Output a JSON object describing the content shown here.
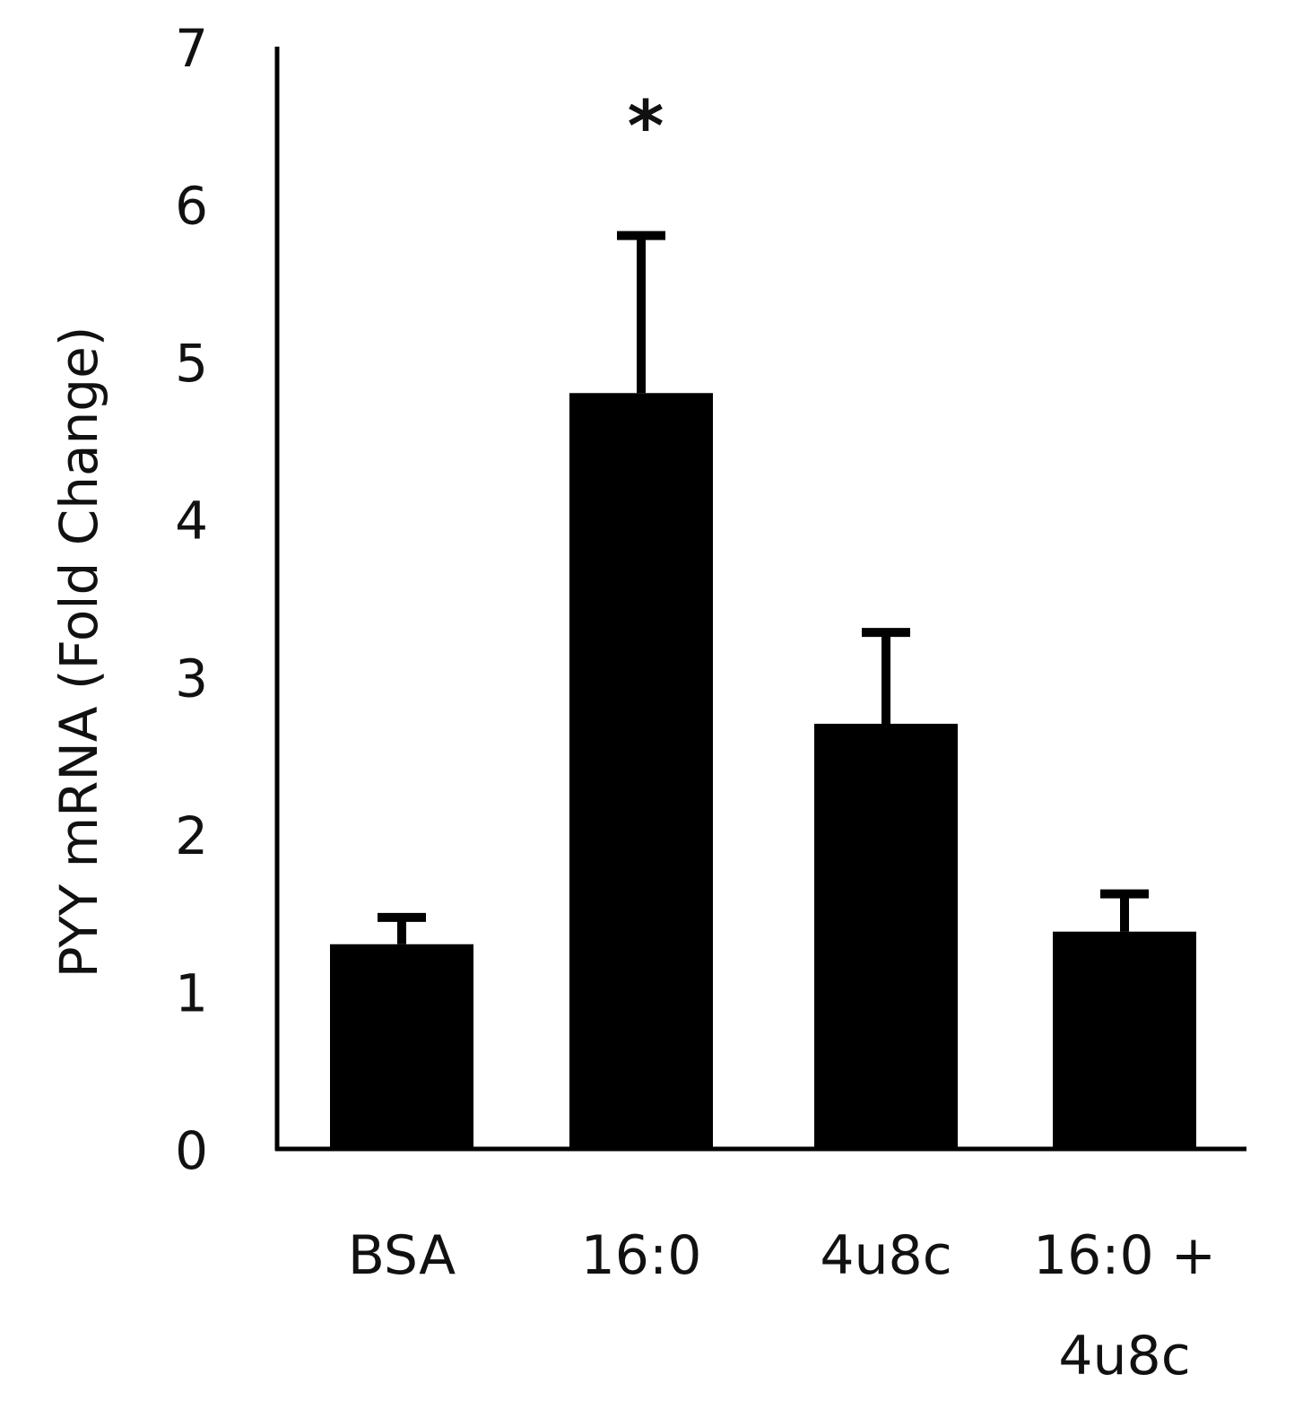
{
  "chart_data": {
    "type": "bar",
    "title": "",
    "xlabel": "",
    "ylabel": "PYY mRNA (Fold Change)",
    "ylim": [
      0,
      7
    ],
    "yticks": [
      "0",
      "1",
      "2",
      "3",
      "4",
      "5",
      "6",
      "7"
    ],
    "categories": [
      "BSA",
      "16:0",
      "4u8c",
      "16:0 + 4u8c"
    ],
    "category_lines": [
      [
        "BSA"
      ],
      [
        "16:0"
      ],
      [
        "4u8c"
      ],
      [
        "16:0 +",
        "4u8c"
      ]
    ],
    "values": [
      1.3,
      4.8,
      2.7,
      1.38
    ],
    "errors": [
      0.17,
      1.0,
      0.58,
      0.24
    ],
    "annotations": [
      {
        "category": "16:0",
        "text": "*"
      }
    ],
    "bar_color": "#000000",
    "grid": false,
    "legend": "none"
  }
}
